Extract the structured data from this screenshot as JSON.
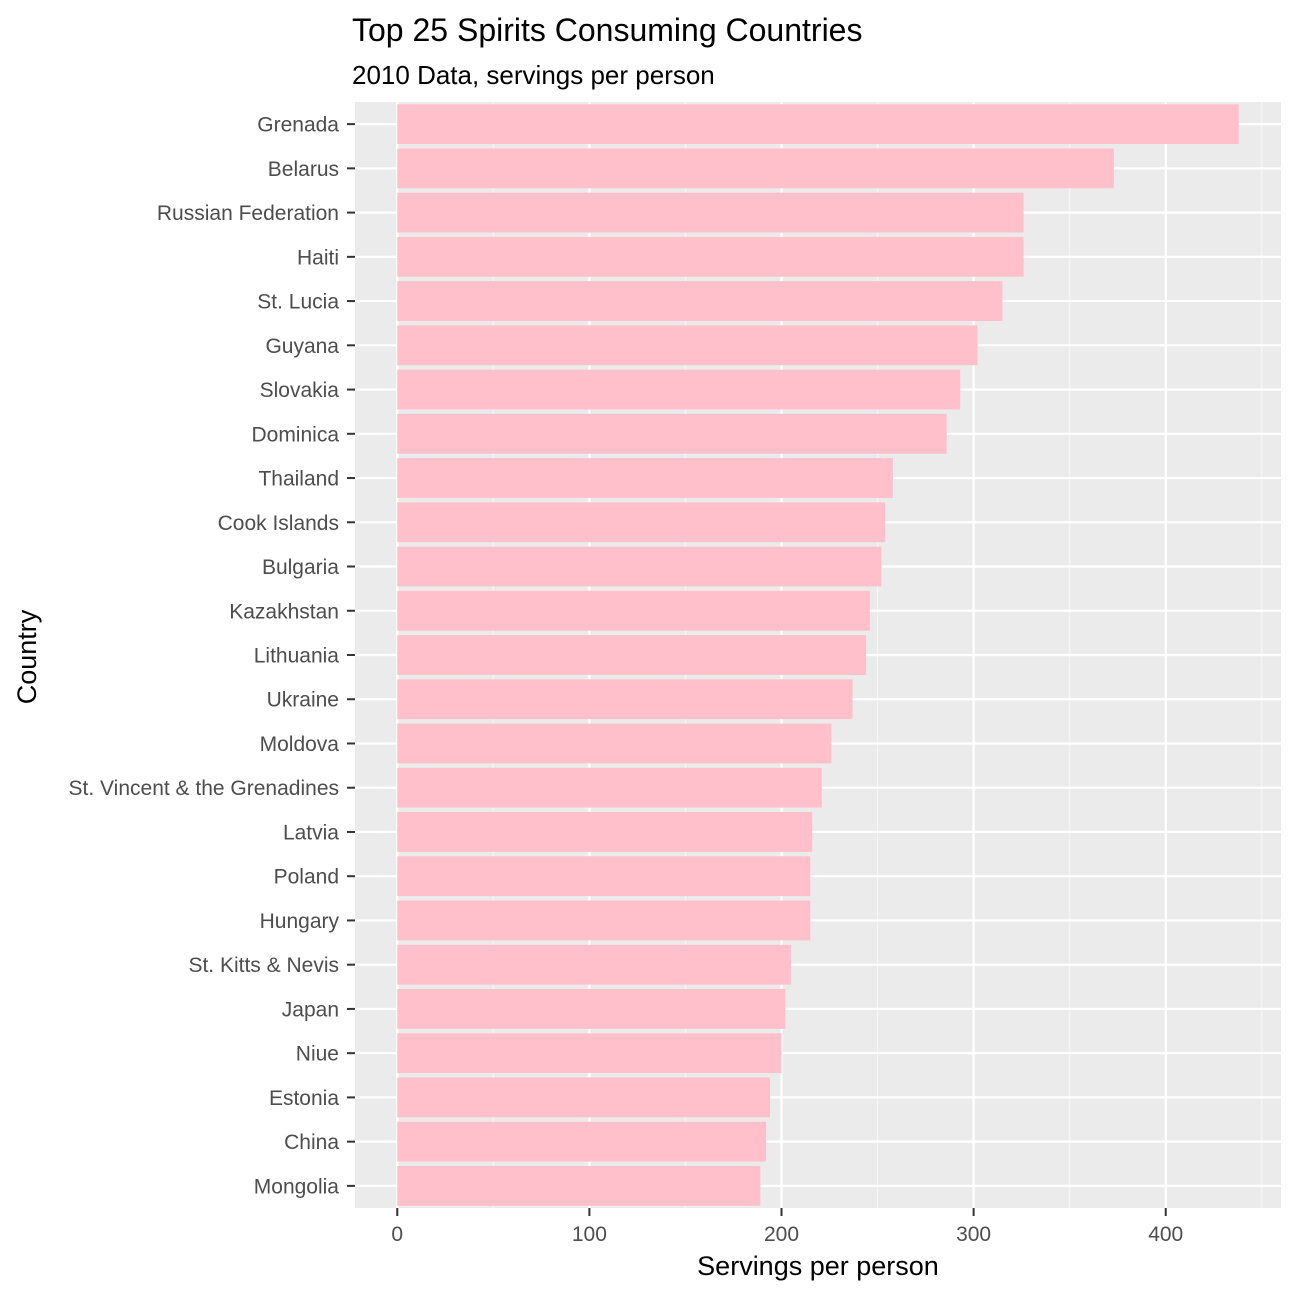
{
  "chart_data": {
    "type": "bar",
    "orientation": "horizontal",
    "title": "Top 25 Spirits Consuming Countries",
    "subtitle": "2010 Data, servings per person",
    "xlabel": "Servings per person",
    "ylabel": "Country",
    "xlim": [
      -22,
      460
    ],
    "xticks": [
      0,
      100,
      200,
      300,
      400
    ],
    "xtick_labels": [
      "0",
      "100",
      "200",
      "300",
      "400"
    ],
    "grid": true,
    "legend": "none",
    "colors": {
      "bar": "#FFC0CB",
      "panel": "#EBEBEB",
      "grid_major": "#FFFFFF",
      "grid_minor": "#F5F5F5",
      "axis_text": "#4D4D4D",
      "tick_line": "#333333"
    },
    "categories": [
      "Grenada",
      "Belarus",
      "Russian Federation",
      "Haiti",
      "St. Lucia",
      "Guyana",
      "Slovakia",
      "Dominica",
      "Thailand",
      "Cook Islands",
      "Bulgaria",
      "Kazakhstan",
      "Lithuania",
      "Ukraine",
      "Moldova",
      "St. Vincent & the Grenadines",
      "Latvia",
      "Poland",
      "Hungary",
      "St. Kitts & Nevis",
      "Japan",
      "Niue",
      "Estonia",
      "China",
      "Mongolia"
    ],
    "values": [
      438,
      373,
      326,
      326,
      315,
      302,
      293,
      286,
      258,
      254,
      252,
      246,
      244,
      237,
      226,
      221,
      216,
      215,
      215,
      205,
      202,
      200,
      194,
      192,
      189
    ]
  }
}
